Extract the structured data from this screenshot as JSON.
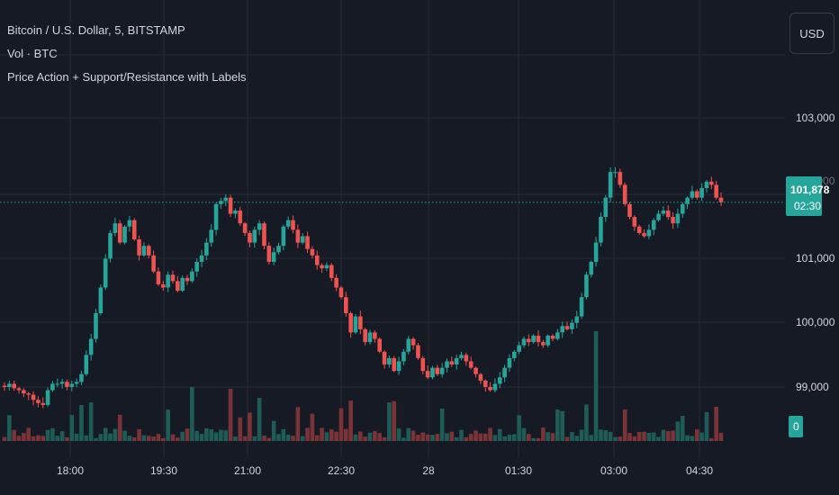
{
  "header": {
    "title": "Bitcoin / U.S. Dollar, 5, BITSTAMP",
    "volume_label": "Vol · BTC",
    "indicator_label": "Price Action + Support/Resistance with Labels"
  },
  "toolbar": {
    "currency": "USD"
  },
  "price_axis": {
    "ticks": [
      "103,000",
      "101,000",
      "100,000",
      "99,000"
    ],
    "hidden_tick": "102,000",
    "last_price": "101,878",
    "countdown": "02:30",
    "volume_badge": "0"
  },
  "time_axis": {
    "ticks": [
      "18:00",
      "19:30",
      "21:00",
      "22:30",
      "28",
      "01:30",
      "03:00",
      "04:30"
    ]
  },
  "colors": {
    "up": "#26a69a",
    "down": "#ef5350",
    "background": "#161a25",
    "grid": "#252933",
    "text": "#d1d4dc"
  },
  "chart_data": {
    "type": "candlestick",
    "title": "Bitcoin / U.S. Dollar, 5, BITSTAMP",
    "y_ticks": [
      99000,
      100000,
      101000,
      103000
    ],
    "ylim": [
      98450,
      103950
    ],
    "x_ticks": [
      "18:00",
      "19:30",
      "21:00",
      "22:30",
      "28",
      "01:30",
      "03:00",
      "04:30"
    ],
    "last_price": 101878,
    "closes": [
      99000,
      99050,
      98980,
      98950,
      98900,
      98880,
      98800,
      98750,
      98720,
      98950,
      99050,
      99050,
      99080,
      99000,
      99050,
      99080,
      99200,
      99500,
      99750,
      100150,
      100550,
      101000,
      101400,
      101550,
      101250,
      101500,
      101600,
      101300,
      101050,
      101200,
      101050,
      100800,
      100600,
      100550,
      100750,
      100650,
      100500,
      100700,
      100650,
      100800,
      100950,
      101050,
      101250,
      101450,
      101850,
      101900,
      101950,
      101700,
      101750,
      101550,
      101400,
      101250,
      101450,
      101550,
      101200,
      100950,
      101100,
      101200,
      101500,
      101600,
      101450,
      101250,
      101350,
      101150,
      101050,
      100900,
      100850,
      100900,
      100700,
      100550,
      100400,
      100150,
      99850,
      100100,
      99900,
      99700,
      99850,
      99750,
      99550,
      99350,
      99450,
      99250,
      99400,
      99550,
      99750,
      99650,
      99450,
      99250,
      99150,
      99300,
      99200,
      99300,
      99400,
      99350,
      99450,
      99500,
      99400,
      99300,
      99200,
      99100,
      99000,
      98950,
      99050,
      99150,
      99300,
      99450,
      99550,
      99650,
      99750,
      99700,
      99800,
      99700,
      99650,
      99800,
      99750,
      99850,
      99950,
      99900,
      100000,
      100100,
      100400,
      100750,
      100950,
      101250,
      101650,
      101950,
      102350,
      102350,
      102150,
      101850,
      101650,
      101500,
      101400,
      101350,
      101450,
      101600,
      101700,
      101750,
      101650,
      101550,
      101700,
      101850,
      101950,
      102050,
      101950,
      102100,
      102200,
      102150,
      101950,
      101880
    ]
  }
}
